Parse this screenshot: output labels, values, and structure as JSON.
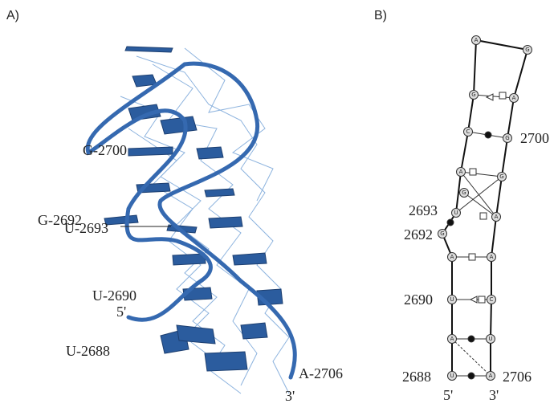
{
  "panels": [
    {
      "label": "A)",
      "annotations": [
        "G-2700",
        "G-2692",
        "U-2693",
        "U-2690",
        "5'",
        "U-2688",
        "A-2706",
        "3'"
      ]
    },
    {
      "label": "B)",
      "annotations": [
        "2700",
        "2693",
        "2692",
        "2690",
        "2688",
        "2706",
        "5'",
        "3'"
      ],
      "nodes": [
        "A",
        "G",
        "G",
        "A",
        "C",
        "G",
        "A",
        "G",
        "G",
        "U",
        "A",
        "G",
        "A",
        "A",
        "U",
        "C",
        "A",
        "U",
        "U",
        "A"
      ]
    }
  ]
}
